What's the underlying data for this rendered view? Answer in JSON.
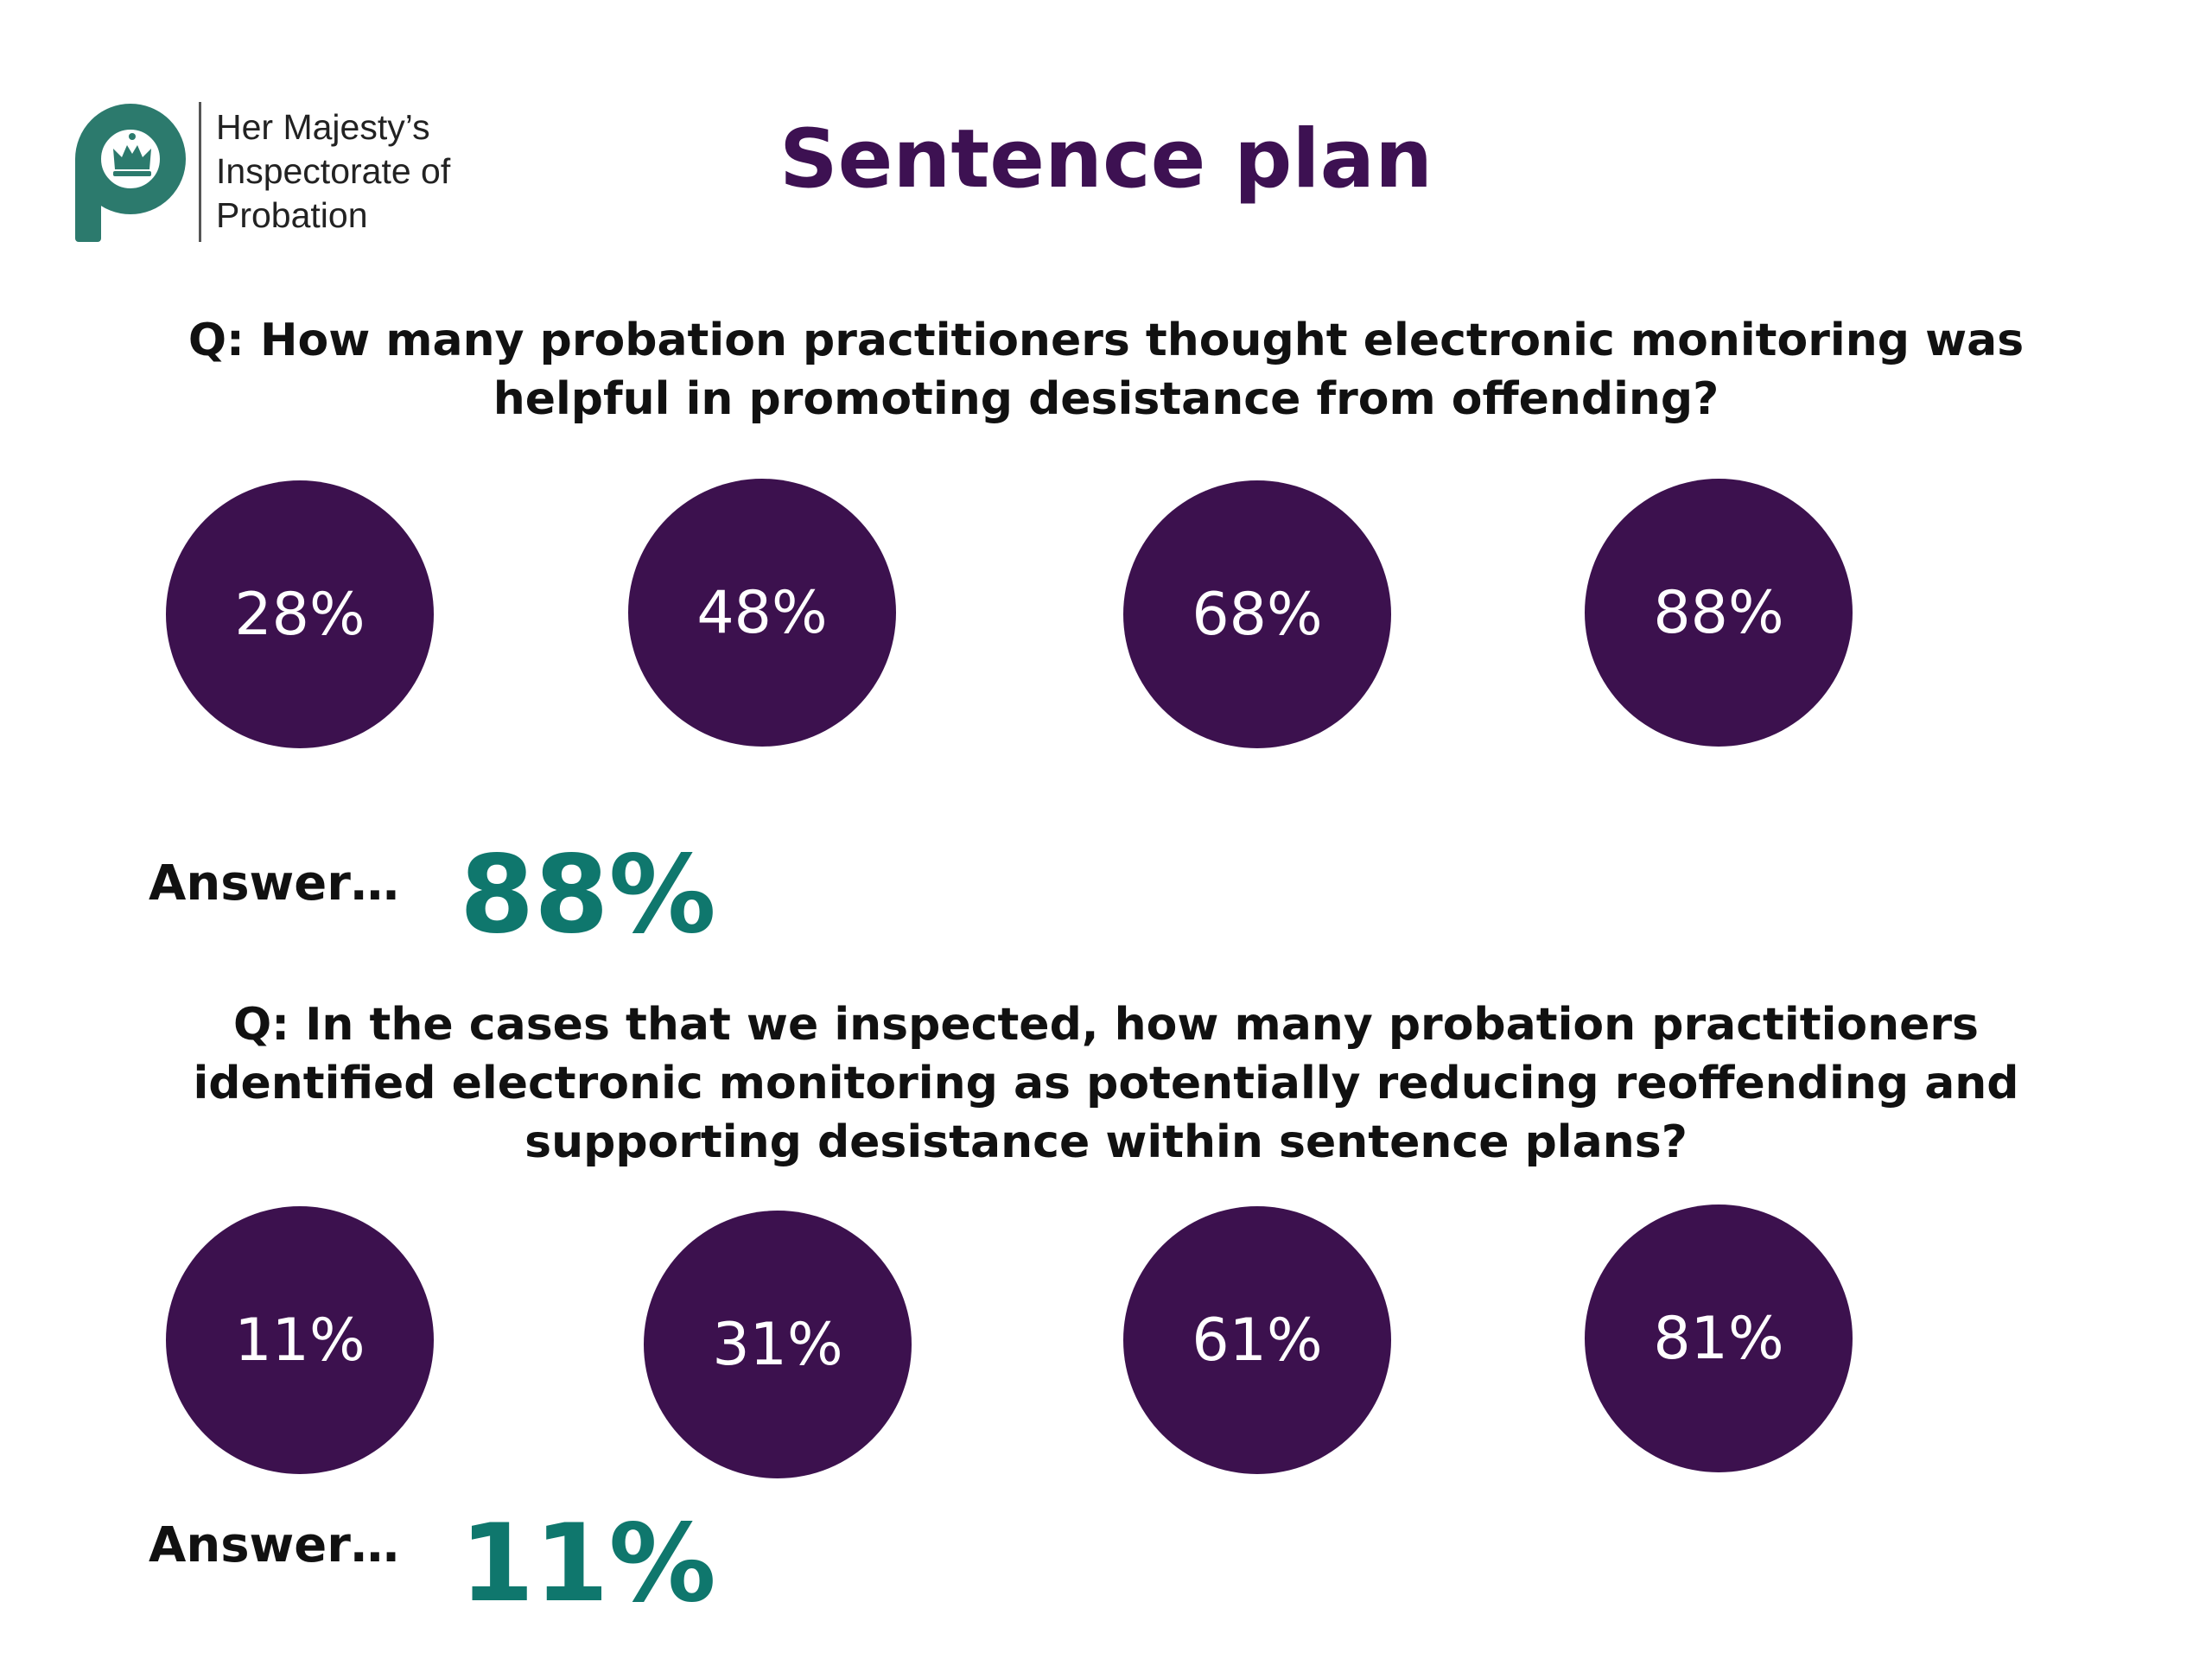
{
  "logo": {
    "icon": "probation-p-crown-icon",
    "line1": "Her Majesty’s",
    "line2": "Inspectorate of",
    "line3": "Probation",
    "color": "#2c7a6d"
  },
  "title": "Sentence plan",
  "colors": {
    "title": "#3d1152",
    "circle": "#3c114e",
    "answer": "#0f776d"
  },
  "questions": [
    {
      "text_line1": "Q: How many probation practitioners thought electronic monitoring was",
      "text_line2": "helpful in promoting desistance from offending?",
      "options": [
        "28%",
        "48%",
        "68%",
        "88%"
      ],
      "answer_label": "Answer…",
      "answer": "88%"
    },
    {
      "text_line1": "Q: In the cases that we inspected, how many probation practitioners",
      "text_line2": "identified electronic monitoring as potentially reducing reoffending and",
      "text_line3": "supporting desistance within sentence plans?",
      "options": [
        "11%",
        "31%",
        "61%",
        "81%"
      ],
      "answer_label": "Answer…",
      "answer": "11%"
    }
  ]
}
